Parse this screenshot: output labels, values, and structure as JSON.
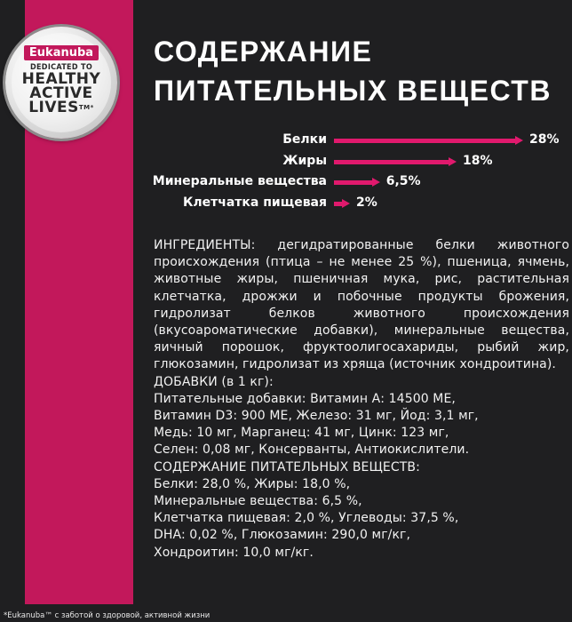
{
  "badge": {
    "brand": "Eukanuba",
    "dedicated": "DEDICATED TO",
    "line1": "HEALTHY",
    "line2": "ACTIVE",
    "line3": "LIVES",
    "mark": "TM*"
  },
  "title": {
    "line1": "СОДЕРЖАНИЕ",
    "line2": "ПИТАТЕЛЬНЫХ ВЕЩЕСТВ"
  },
  "nutrients": [
    {
      "label": "Белки",
      "value_text": "28%",
      "value": 28
    },
    {
      "label": "Жиры",
      "value_text": "18%",
      "value": 18
    },
    {
      "label": "Минеральные вещества",
      "value_text": "6,5%",
      "value": 6.5
    },
    {
      "label": "Клетчатка пищевая",
      "value_text": "2%",
      "value": 2
    }
  ],
  "colors": {
    "accent": "#e0196d",
    "stripe": "#c2185b",
    "background": "#1f1f21"
  },
  "ingredients": "ИНГРЕДИЕНТЫ: дегидратированные белки животного происхождения (птица – не менее 25 %), пшеница, ячмень, животные жиры, пшеничная мука, рис, растительная клетчатка, дрожжи и побочные продукты брожения, гидролизат белков животного происхождения (вкусоароматические добавки), минеральные вещества, яичный порошок, фруктоолигосахариды, рыбий жир, глюкозамин, гидролизат из хряща (источник хондроитина).",
  "additives_lines": [
    "ДОБАВКИ (в 1 кг):",
    "Питательные добавки: Витамин А: 14500 МЕ,",
    "Витамин D3: 900 МЕ, Железо: 31 мг, Йод: 3,1 мг,",
    "Медь: 10 мг, Марганец: 41 мг, Цинк: 123 мг,",
    "Селен: 0,08 мг, Консерванты, Антиокислители.",
    "СОДЕРЖАНИЕ ПИТАТЕЛЬНЫХ ВЕЩЕСТВ:",
    "Белки: 28,0 %, Жиры: 18,0 %,",
    "Минеральные вещества: 6,5 %,",
    "Клетчатка пищевая: 2,0 %, Углеводы: 37,5 %,",
    "DHA: 0,02 %, Глюкозамин: 290,0 мг/кг,",
    "Хондроитин: 10,0 мг/кг."
  ],
  "footnote": "*Eukanuba™ с заботой о здоровой, активной жизни"
}
